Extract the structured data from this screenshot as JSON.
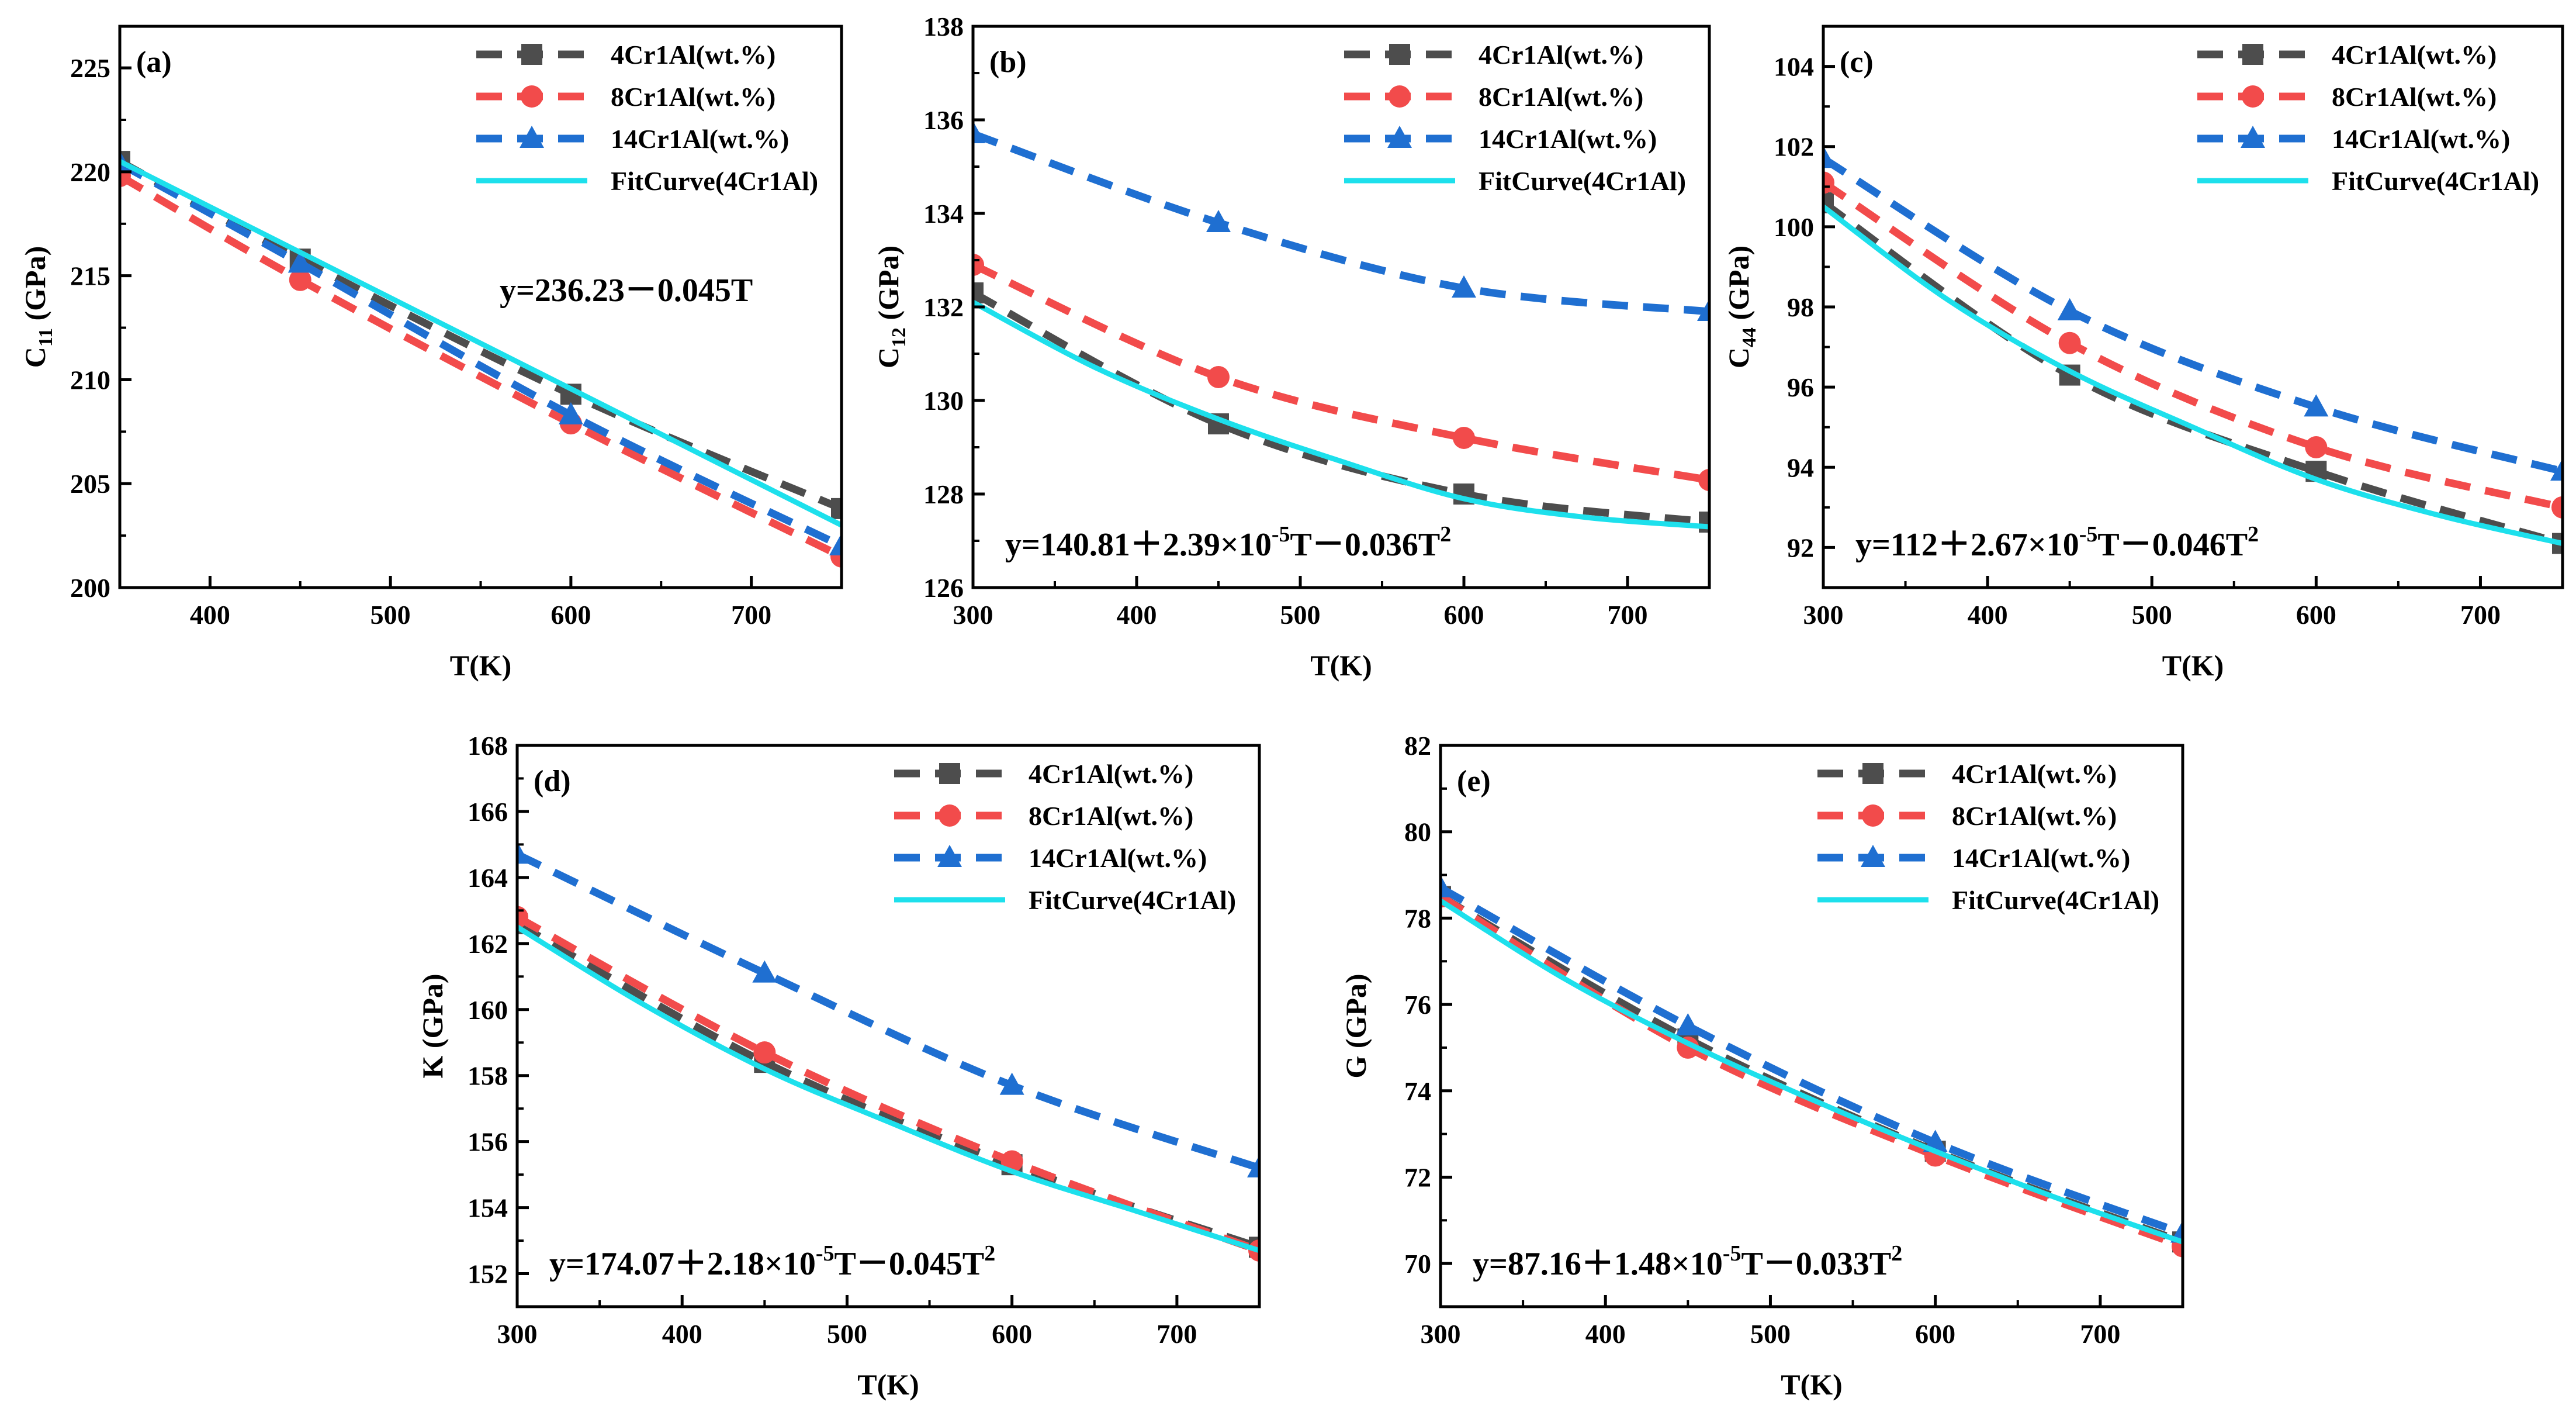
{
  "legend": {
    "entries": [
      {
        "label": "4Cr1Al(wt.%)",
        "color": "#4d4d4d",
        "marker": "square",
        "dashed": true
      },
      {
        "label": "8Cr1Al(wt.%)",
        "color": "#f24b4b",
        "marker": "circle",
        "dashed": true
      },
      {
        "label": "14Cr1Al(wt.%)",
        "color": "#1f6fd1",
        "marker": "triangle",
        "dashed": true
      },
      {
        "label": "FitCurve(4Cr1Al)",
        "color": "#1de0ec",
        "marker": "none",
        "dashed": false
      }
    ]
  },
  "chart_data": [
    {
      "type": "line",
      "panel_label": "(a)",
      "xlabel": "T(K)",
      "ylabel_main": "C",
      "ylabel_sub": "11",
      "ylabel_unit": " (GPa)",
      "xlim": [
        350,
        750
      ],
      "ylim": [
        200,
        227
      ],
      "xticks": [
        400,
        500,
        600,
        700
      ],
      "yticks": [
        200,
        205,
        210,
        215,
        220,
        225
      ],
      "equation": "y=236.23－0.045T",
      "equation_pos": "upper-right",
      "series": [
        {
          "name": "4Cr1Al(wt.%)",
          "x": [
            350,
            450,
            600,
            750
          ],
          "y": [
            220.5,
            215.8,
            209.3,
            203.8
          ]
        },
        {
          "name": "8Cr1Al(wt.%)",
          "x": [
            350,
            450,
            600,
            750
          ],
          "y": [
            219.8,
            214.8,
            207.9,
            201.5
          ]
        },
        {
          "name": "14Cr1Al(wt.%)",
          "x": [
            350,
            450,
            600,
            750
          ],
          "y": [
            220.4,
            215.6,
            208.3,
            202.0
          ]
        },
        {
          "name": "FitCurve(4Cr1Al)",
          "x": [
            350,
            750
          ],
          "y": [
            220.5,
            203.0
          ]
        }
      ]
    },
    {
      "type": "line",
      "panel_label": "(b)",
      "xlabel": "T(K)",
      "ylabel_main": "C",
      "ylabel_sub": "12",
      "ylabel_unit": " (GPa)",
      "xlim": [
        300,
        750
      ],
      "ylim": [
        126,
        138
      ],
      "xticks": [
        300,
        400,
        500,
        600,
        700
      ],
      "yticks": [
        126,
        128,
        130,
        132,
        134,
        136,
        138
      ],
      "equation": "y=140.81＋2.39×10",
      "equation_exp1": "-5",
      "equation_mid": "T－0.036T",
      "equation_exp2": "2",
      "equation_pos": "lower",
      "series": [
        {
          "name": "4Cr1Al(wt.%)",
          "x": [
            300,
            450,
            600,
            750
          ],
          "y": [
            132.3,
            129.5,
            128.0,
            127.4
          ]
        },
        {
          "name": "8Cr1Al(wt.%)",
          "x": [
            300,
            450,
            600,
            750
          ],
          "y": [
            132.9,
            130.5,
            129.2,
            128.3
          ]
        },
        {
          "name": "14Cr1Al(wt.%)",
          "x": [
            300,
            450,
            600,
            750
          ],
          "y": [
            135.7,
            133.8,
            132.4,
            131.9
          ]
        },
        {
          "name": "FitCurve(4Cr1Al)",
          "x": [
            300,
            375,
            450,
            525,
            600,
            675,
            750
          ],
          "y": [
            132.1,
            130.7,
            129.6,
            128.7,
            127.9,
            127.5,
            127.3
          ]
        }
      ]
    },
    {
      "type": "line",
      "panel_label": "(c)",
      "xlabel": "T(K)",
      "ylabel_main": "C",
      "ylabel_sub": "44",
      "ylabel_unit": " (GPa)",
      "xlim": [
        300,
        750
      ],
      "ylim": [
        91,
        105
      ],
      "xticks": [
        300,
        400,
        500,
        600,
        700
      ],
      "yticks": [
        92,
        94,
        96,
        98,
        100,
        102,
        104
      ],
      "equation": "y=112＋2.67×10",
      "equation_exp1": "-5",
      "equation_mid": "T－0.046T",
      "equation_exp2": "2",
      "equation_pos": "lower",
      "series": [
        {
          "name": "4Cr1Al(wt.%)",
          "x": [
            300,
            450,
            600,
            750
          ],
          "y": [
            100.6,
            96.3,
            93.9,
            92.1
          ]
        },
        {
          "name": "8Cr1Al(wt.%)",
          "x": [
            300,
            450,
            600,
            750
          ],
          "y": [
            101.1,
            97.1,
            94.5,
            93.0
          ]
        },
        {
          "name": "14Cr1Al(wt.%)",
          "x": [
            300,
            450,
            600,
            750
          ],
          "y": [
            101.7,
            97.9,
            95.5,
            93.9
          ]
        },
        {
          "name": "FitCurve(4Cr1Al)",
          "x": [
            300,
            375,
            450,
            525,
            600,
            675,
            750
          ],
          "y": [
            100.5,
            98.2,
            96.4,
            95.0,
            93.7,
            92.8,
            92.1
          ]
        }
      ]
    },
    {
      "type": "line",
      "panel_label": "(d)",
      "xlabel": "T(K)",
      "ylabel_main": "K (GPa)",
      "ylabel_sub": "",
      "ylabel_unit": "",
      "xlim": [
        300,
        750
      ],
      "ylim": [
        151,
        168
      ],
      "xticks": [
        300,
        400,
        500,
        600,
        700
      ],
      "yticks": [
        152,
        154,
        156,
        158,
        160,
        162,
        164,
        166,
        168
      ],
      "equation": "y=174.07＋2.18×10",
      "equation_exp1": "-5",
      "equation_mid": "T－0.045T",
      "equation_exp2": "2",
      "equation_pos": "lower",
      "series": [
        {
          "name": "4Cr1Al(wt.%)",
          "x": [
            300,
            450,
            600,
            750
          ],
          "y": [
            162.6,
            158.4,
            155.3,
            152.8
          ]
        },
        {
          "name": "8Cr1Al(wt.%)",
          "x": [
            300,
            450,
            600,
            750
          ],
          "y": [
            162.8,
            158.7,
            155.4,
            152.7
          ]
        },
        {
          "name": "14Cr1Al(wt.%)",
          "x": [
            300,
            450,
            600,
            750
          ],
          "y": [
            164.7,
            161.1,
            157.7,
            155.2
          ]
        },
        {
          "name": "FitCurve(4Cr1Al)",
          "x": [
            300,
            375,
            450,
            525,
            600,
            675,
            750
          ],
          "y": [
            162.5,
            160.2,
            158.2,
            156.6,
            155.1,
            153.9,
            152.7
          ]
        }
      ]
    },
    {
      "type": "line",
      "panel_label": "(e)",
      "xlabel": "T(K)",
      "ylabel_main": "G (GPa)",
      "ylabel_sub": "",
      "ylabel_unit": "",
      "xlim": [
        300,
        750
      ],
      "ylim": [
        69,
        82
      ],
      "xticks": [
        300,
        400,
        500,
        600,
        700
      ],
      "yticks": [
        70,
        72,
        74,
        76,
        78,
        80,
        82
      ],
      "equation": "y=87.16＋1.48×10",
      "equation_exp1": "-5",
      "equation_mid": "T－0.033T",
      "equation_exp2": "2",
      "equation_pos": "lower",
      "series": [
        {
          "name": "4Cr1Al(wt.%)",
          "x": [
            300,
            450,
            600,
            750
          ],
          "y": [
            78.5,
            75.2,
            72.6,
            70.5
          ]
        },
        {
          "name": "8Cr1Al(wt.%)",
          "x": [
            300,
            450,
            600,
            750
          ],
          "y": [
            78.5,
            75.0,
            72.5,
            70.4
          ]
        },
        {
          "name": "14Cr1Al(wt.%)",
          "x": [
            300,
            450,
            600,
            750
          ],
          "y": [
            78.7,
            75.5,
            72.8,
            70.7
          ]
        },
        {
          "name": "FitCurve(4Cr1Al)",
          "x": [
            300,
            375,
            450,
            525,
            600,
            675,
            750
          ],
          "y": [
            78.4,
            76.6,
            75.1,
            73.8,
            72.6,
            71.5,
            70.5
          ]
        }
      ]
    }
  ]
}
